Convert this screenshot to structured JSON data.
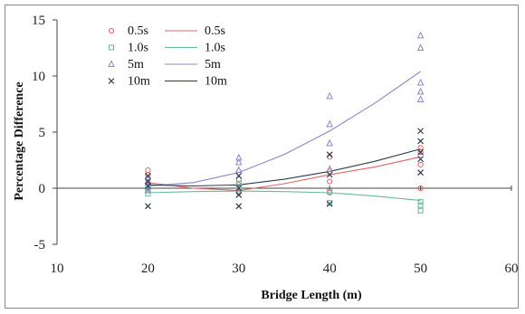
{
  "chart_data": {
    "type": "scatter",
    "xlabel": "Bridge Length (m)",
    "ylabel": "Percentage Difference",
    "xlim": [
      10,
      60
    ],
    "ylim": [
      -5,
      15
    ],
    "xticks": [
      10,
      20,
      30,
      40,
      50,
      60
    ],
    "yticks": [
      -5,
      0,
      5,
      10,
      15
    ],
    "grid": false,
    "legend_position": "top-left",
    "series": [
      {
        "name": "0.5s",
        "marker": "circle",
        "color": "#e06666",
        "points": [
          [
            20,
            1.6
          ],
          [
            20,
            1.2
          ],
          [
            20,
            0.5
          ],
          [
            20,
            -0.2
          ],
          [
            30,
            0.3
          ],
          [
            30,
            -0.4
          ],
          [
            30,
            0.8
          ],
          [
            40,
            -0.4
          ],
          [
            40,
            0.6
          ],
          [
            40,
            1.5
          ],
          [
            40,
            2.8
          ],
          [
            50,
            2.1
          ],
          [
            50,
            3.2
          ],
          [
            50,
            3.6
          ],
          [
            50,
            0.0
          ]
        ],
        "trend_name": "0.5s",
        "trend_color": "#e06666",
        "trend": [
          [
            20,
            0.5
          ],
          [
            25,
            0.0
          ],
          [
            30,
            -0.2
          ],
          [
            35,
            0.4
          ],
          [
            40,
            1.2
          ],
          [
            45,
            1.9
          ],
          [
            50,
            2.8
          ]
        ]
      },
      {
        "name": "1.0s",
        "marker": "square",
        "color": "#66bb99",
        "points": [
          [
            20,
            -0.5
          ],
          [
            20,
            0.2
          ],
          [
            20,
            -0.2
          ],
          [
            30,
            -0.2
          ],
          [
            30,
            0.4
          ],
          [
            40,
            -1.3
          ],
          [
            40,
            -0.3
          ],
          [
            50,
            -1.5
          ],
          [
            50,
            -2.0
          ],
          [
            50,
            -1.2
          ]
        ],
        "trend_name": "1.0s",
        "trend_color": "#66bb99",
        "trend": [
          [
            20,
            -0.4
          ],
          [
            25,
            -0.3
          ],
          [
            30,
            -0.25
          ],
          [
            35,
            -0.3
          ],
          [
            40,
            -0.4
          ],
          [
            45,
            -0.7
          ],
          [
            50,
            -1.1
          ]
        ]
      },
      {
        "name": "5m",
        "marker": "triangle",
        "color": "#8888cc",
        "points": [
          [
            20,
            -0.2
          ],
          [
            20,
            0.6
          ],
          [
            30,
            2.7
          ],
          [
            30,
            2.3
          ],
          [
            30,
            1.6
          ],
          [
            40,
            8.2
          ],
          [
            40,
            5.7
          ],
          [
            40,
            4.0
          ],
          [
            40,
            1.7
          ],
          [
            50,
            13.6
          ],
          [
            50,
            12.5
          ],
          [
            50,
            9.4
          ],
          [
            50,
            8.6
          ],
          [
            50,
            7.9
          ]
        ],
        "trend_name": "5m",
        "trend_color": "#8888cc",
        "trend": [
          [
            20,
            0.2
          ],
          [
            25,
            0.5
          ],
          [
            30,
            1.4
          ],
          [
            35,
            3.0
          ],
          [
            40,
            5.1
          ],
          [
            45,
            7.6
          ],
          [
            50,
            10.4
          ]
        ]
      },
      {
        "name": "10m",
        "marker": "x",
        "color": "#2e3a52",
        "points": [
          [
            20,
            1.1
          ],
          [
            20,
            0.6
          ],
          [
            20,
            0.2
          ],
          [
            20,
            -1.6
          ],
          [
            30,
            1.1
          ],
          [
            30,
            0.0
          ],
          [
            30,
            -0.6
          ],
          [
            30,
            -1.6
          ],
          [
            40,
            3.0
          ],
          [
            40,
            1.2
          ],
          [
            40,
            -1.4
          ],
          [
            50,
            5.1
          ],
          [
            50,
            4.2
          ],
          [
            50,
            3.2
          ],
          [
            50,
            2.6
          ],
          [
            50,
            1.4
          ]
        ],
        "trend_name": "10m",
        "trend_color": "#2e3a52",
        "trend": [
          [
            20,
            0.3
          ],
          [
            25,
            0.2
          ],
          [
            30,
            0.3
          ],
          [
            35,
            0.8
          ],
          [
            40,
            1.5
          ],
          [
            45,
            2.4
          ],
          [
            50,
            3.5
          ]
        ]
      }
    ]
  }
}
